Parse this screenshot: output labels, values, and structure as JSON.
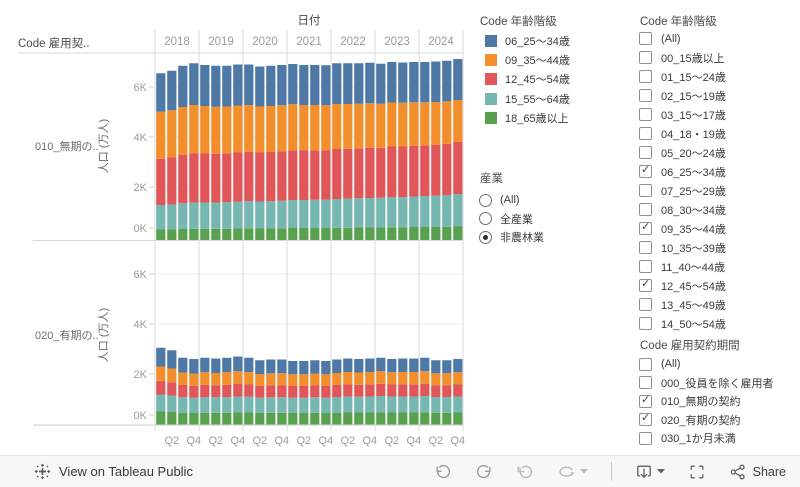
{
  "chart_data": {
    "type": "bar",
    "stacked": true,
    "title_date_axis": "日付",
    "row_field_label": "Code 雇用契..",
    "ylabel": "人口 (万人)",
    "value_axis_unit": "K",
    "ylim": [
      0,
      7500
    ],
    "grid": true,
    "legend_position": "right",
    "years": [
      "2018",
      "2019",
      "2020",
      "2021",
      "2022",
      "2023",
      "2024"
    ],
    "quarter_tick_labels": [
      "Q2",
      "Q4"
    ],
    "yticks": [
      "0K",
      "2K",
      "4K",
      "6K"
    ],
    "quarters": [
      "2018 Q1",
      "2018 Q2",
      "2018 Q3",
      "2018 Q4",
      "2019 Q1",
      "2019 Q2",
      "2019 Q3",
      "2019 Q4",
      "2020 Q1",
      "2020 Q2",
      "2020 Q3",
      "2020 Q4",
      "2021 Q1",
      "2021 Q2",
      "2021 Q3",
      "2021 Q4",
      "2022 Q1",
      "2022 Q2",
      "2022 Q3",
      "2022 Q4",
      "2023 Q1",
      "2023 Q2",
      "2023 Q3",
      "2023 Q4",
      "2024 Q1",
      "2024 Q2",
      "2024 Q3",
      "2024 Q4"
    ],
    "panels": [
      {
        "row_label": "010_無期の..",
        "series": [
          {
            "name": "18_65歳以上",
            "color": "#59a14f",
            "values": [
              0.3,
              0.3,
              0.32,
              0.33,
              0.33,
              0.33,
              0.33,
              0.34,
              0.35,
              0.34,
              0.34,
              0.35,
              0.36,
              0.36,
              0.36,
              0.36,
              0.37,
              0.37,
              0.38,
              0.38,
              0.38,
              0.39,
              0.39,
              0.4,
              0.4,
              0.4,
              0.41,
              0.42
            ]
          },
          {
            "name": "15_55〜64歳",
            "color": "#76b7b2",
            "values": [
              0.98,
              1.0,
              1.03,
              1.05,
              1.05,
              1.05,
              1.06,
              1.07,
              1.08,
              1.08,
              1.09,
              1.1,
              1.12,
              1.12,
              1.13,
              1.13,
              1.15,
              1.16,
              1.17,
              1.18,
              1.19,
              1.21,
              1.21,
              1.22,
              1.24,
              1.25,
              1.27,
              1.3
            ]
          },
          {
            "name": "12_45〜54歳",
            "color": "#e15759",
            "values": [
              1.85,
              1.88,
              1.93,
              1.97,
              1.96,
              1.95,
              1.96,
              1.97,
              1.98,
              1.96,
              1.97,
              1.98,
              1.99,
              1.98,
              1.98,
              1.98,
              2.0,
              2.0,
              2.0,
              2.01,
              2.0,
              2.02,
              2.02,
              2.03,
              2.03,
              2.04,
              2.05,
              2.08
            ]
          },
          {
            "name": "09_35〜44歳",
            "color": "#f28e2b",
            "values": [
              1.88,
              1.89,
              1.92,
              1.93,
              1.9,
              1.88,
              1.87,
              1.88,
              1.87,
              1.84,
              1.84,
              1.84,
              1.84,
              1.82,
              1.81,
              1.8,
              1.8,
              1.79,
              1.78,
              1.78,
              1.76,
              1.76,
              1.75,
              1.74,
              1.72,
              1.71,
              1.7,
              1.68
            ]
          },
          {
            "name": "06_25〜34歳",
            "color": "#4e79a7",
            "values": [
              1.54,
              1.58,
              1.65,
              1.67,
              1.64,
              1.64,
              1.63,
              1.64,
              1.62,
              1.6,
              1.61,
              1.61,
              1.61,
              1.6,
              1.6,
              1.6,
              1.63,
              1.63,
              1.62,
              1.62,
              1.6,
              1.62,
              1.61,
              1.61,
              1.61,
              1.62,
              1.62,
              1.64
            ]
          }
        ]
      },
      {
        "row_label": "020_有期の..",
        "series": [
          {
            "name": "18_65歳以上",
            "color": "#59a14f",
            "values": [
              0.5,
              0.48,
              0.45,
              0.44,
              0.45,
              0.45,
              0.45,
              0.46,
              0.46,
              0.44,
              0.45,
              0.45,
              0.44,
              0.44,
              0.45,
              0.44,
              0.45,
              0.46,
              0.46,
              0.46,
              0.47,
              0.46,
              0.46,
              0.46,
              0.47,
              0.45,
              0.45,
              0.46
            ]
          },
          {
            "name": "15_55〜64歳",
            "color": "#76b7b2",
            "values": [
              0.68,
              0.66,
              0.62,
              0.61,
              0.63,
              0.62,
              0.63,
              0.64,
              0.63,
              0.61,
              0.62,
              0.62,
              0.61,
              0.61,
              0.62,
              0.61,
              0.63,
              0.64,
              0.63,
              0.64,
              0.65,
              0.64,
              0.64,
              0.64,
              0.65,
              0.63,
              0.63,
              0.64
            ]
          },
          {
            "name": "12_45〜54歳",
            "color": "#e15759",
            "values": [
              0.55,
              0.53,
              0.49,
              0.48,
              0.49,
              0.48,
              0.49,
              0.5,
              0.49,
              0.47,
              0.48,
              0.48,
              0.47,
              0.47,
              0.47,
              0.47,
              0.48,
              0.49,
              0.48,
              0.49,
              0.49,
              0.48,
              0.49,
              0.49,
              0.49,
              0.47,
              0.47,
              0.48
            ]
          },
          {
            "name": "09_35〜44歳",
            "color": "#f28e2b",
            "values": [
              0.57,
              0.55,
              0.5,
              0.49,
              0.5,
              0.49,
              0.5,
              0.51,
              0.5,
              0.48,
              0.48,
              0.48,
              0.47,
              0.47,
              0.48,
              0.47,
              0.48,
              0.49,
              0.49,
              0.49,
              0.5,
              0.49,
              0.49,
              0.49,
              0.5,
              0.48,
              0.48,
              0.49
            ]
          },
          {
            "name": "06_25〜34歳",
            "color": "#4e79a7",
            "values": [
              0.75,
              0.73,
              0.59,
              0.58,
              0.58,
              0.58,
              0.58,
              0.59,
              0.57,
              0.55,
              0.55,
              0.55,
              0.53,
              0.53,
              0.53,
              0.53,
              0.54,
              0.54,
              0.54,
              0.54,
              0.54,
              0.53,
              0.54,
              0.54,
              0.54,
              0.52,
              0.52,
              0.53
            ]
          }
        ]
      }
    ]
  },
  "legend": {
    "title": "Code 年齢階級",
    "items": [
      {
        "label": "06_25〜34歳",
        "color": "#4e79a7"
      },
      {
        "label": "09_35〜44歳",
        "color": "#f28e2b"
      },
      {
        "label": "12_45〜54歳",
        "color": "#e15759"
      },
      {
        "label": "15_55〜64歳",
        "color": "#76b7b2"
      },
      {
        "label": "18_65歳以上",
        "color": "#59a14f"
      }
    ]
  },
  "industry_filter": {
    "title": "産業",
    "options": [
      {
        "label": "(All)",
        "selected": false
      },
      {
        "label": "全産業",
        "selected": false
      },
      {
        "label": "非農林業",
        "selected": true
      }
    ]
  },
  "age_filter": {
    "title": "Code 年齢階級",
    "items": [
      {
        "label": "(All)",
        "checked": false
      },
      {
        "label": "00_15歳以上",
        "checked": false
      },
      {
        "label": "01_15〜24歳",
        "checked": false
      },
      {
        "label": "02_15〜19歳",
        "checked": false
      },
      {
        "label": "03_15〜17歳",
        "checked": false
      },
      {
        "label": "04_18・19歳",
        "checked": false
      },
      {
        "label": "05_20〜24歳",
        "checked": false
      },
      {
        "label": "06_25〜34歳",
        "checked": true
      },
      {
        "label": "07_25〜29歳",
        "checked": false
      },
      {
        "label": "08_30〜34歳",
        "checked": false
      },
      {
        "label": "09_35〜44歳",
        "checked": true
      },
      {
        "label": "10_35〜39歳",
        "checked": false
      },
      {
        "label": "11_40〜44歳",
        "checked": false
      },
      {
        "label": "12_45〜54歳",
        "checked": true
      },
      {
        "label": "13_45〜49歳",
        "checked": false
      },
      {
        "label": "14_50〜54歳",
        "checked": false
      }
    ]
  },
  "contract_filter": {
    "title": "Code 雇用契約期間",
    "items": [
      {
        "label": "(All)",
        "checked": false
      },
      {
        "label": "000_役員を除く雇用者",
        "checked": false
      },
      {
        "label": "010_無期の契約",
        "checked": true
      },
      {
        "label": "020_有期の契約",
        "checked": true
      },
      {
        "label": "030_1か月未満",
        "checked": false
      }
    ]
  },
  "toolbar": {
    "view_text": "View on Tableau Public",
    "share_label": "Share",
    "buttons": [
      "undo",
      "redo",
      "revert",
      "refresh",
      "download",
      "fullscreen",
      "share"
    ]
  },
  "colors": {
    "gridline": "#ececec",
    "separator": "#dadada",
    "axis_line": "#cfcfcf",
    "tick_text": "#9a9a9a",
    "title_text": "#4c4c4c",
    "row_label_text": "#6b6b6b",
    "toolbar_bg": "#f7f7f7"
  }
}
